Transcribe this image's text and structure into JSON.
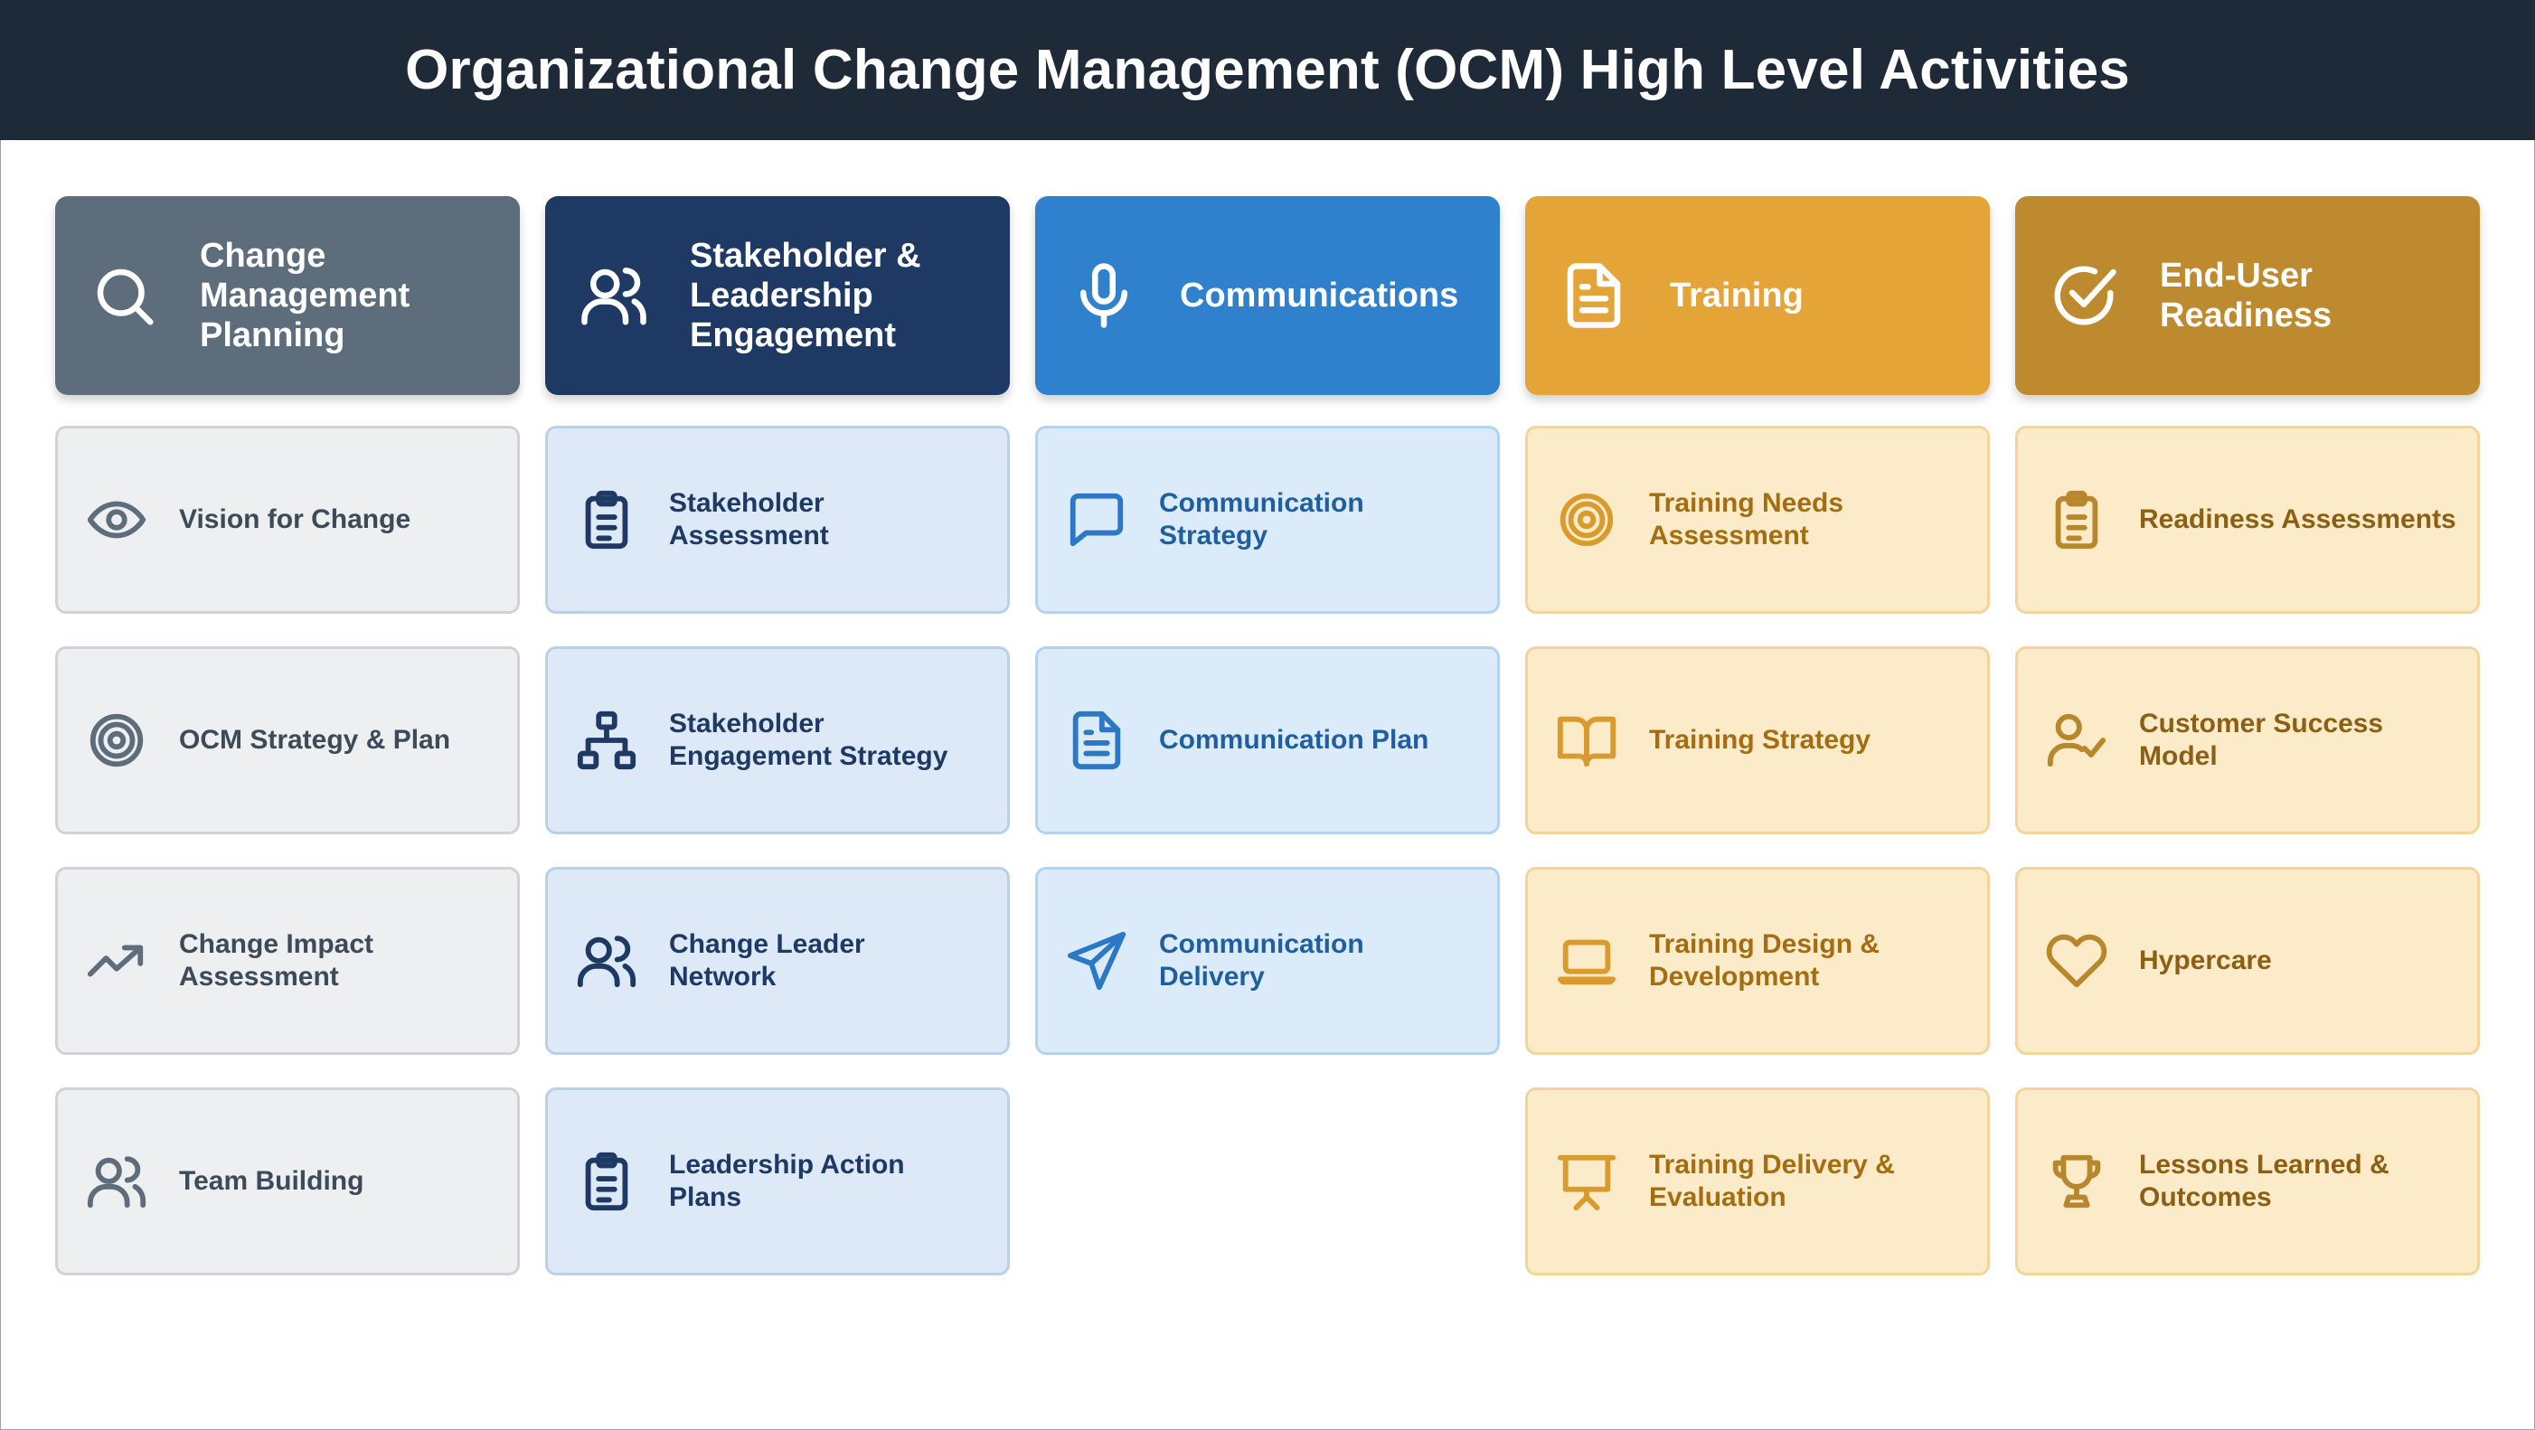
{
  "title": "Organizational Change Management (OCM) High Level Activities",
  "columns": [
    {
      "title": "Change\nManagement\nPlanning",
      "icon": "search-icon",
      "color": "#5d6d7b",
      "cards": [
        {
          "label": "Vision for Change",
          "icon": "eye-icon"
        },
        {
          "label": "OCM Strategy & Plan",
          "icon": "target-icon"
        },
        {
          "label": "Change Impact\nAssessment",
          "icon": "trend-up-icon"
        },
        {
          "label": "Team Building",
          "icon": "users-icon"
        }
      ]
    },
    {
      "title": "Stakeholder &\nLeadership\nEngagement",
      "icon": "users-icon",
      "color": "#1e3a64",
      "cards": [
        {
          "label": "Stakeholder\nAssessment",
          "icon": "clipboard-list-icon"
        },
        {
          "label": "Stakeholder\nEngagement Strategy",
          "icon": "org-chart-icon"
        },
        {
          "label": "Change Leader\nNetwork",
          "icon": "users-icon"
        },
        {
          "label": "Leadership Action\nPlans",
          "icon": "clipboard-list-icon"
        }
      ]
    },
    {
      "title": "Communications",
      "icon": "microphone-icon",
      "color": "#2f80cd",
      "cards": [
        {
          "label": "Communication\nStrategy",
          "icon": "chat-bubble-icon"
        },
        {
          "label": "Communication Plan",
          "icon": "document-icon"
        },
        {
          "label": "Communication\nDelivery",
          "icon": "send-icon"
        }
      ]
    },
    {
      "title": "Training",
      "icon": "document-icon",
      "color": "#e4a438",
      "cards": [
        {
          "label": "Training Needs\nAssessment",
          "icon": "target-icon"
        },
        {
          "label": "Training Strategy",
          "icon": "book-open-icon"
        },
        {
          "label": "Training Design &\nDevelopment",
          "icon": "laptop-icon"
        },
        {
          "label": "Training Delivery &\nEvaluation",
          "icon": "presentation-icon"
        }
      ]
    },
    {
      "title": "End-User\nReadiness",
      "icon": "check-circle-icon",
      "color": "#be8a2f",
      "cards": [
        {
          "label": "Readiness Assessments",
          "icon": "clipboard-list-icon"
        },
        {
          "label": "Customer Success\nModel",
          "icon": "user-check-icon"
        },
        {
          "label": "Hypercare",
          "icon": "heart-icon"
        },
        {
          "label": "Lessons Learned &\nOutcomes",
          "icon": "trophy-icon"
        }
      ]
    }
  ]
}
